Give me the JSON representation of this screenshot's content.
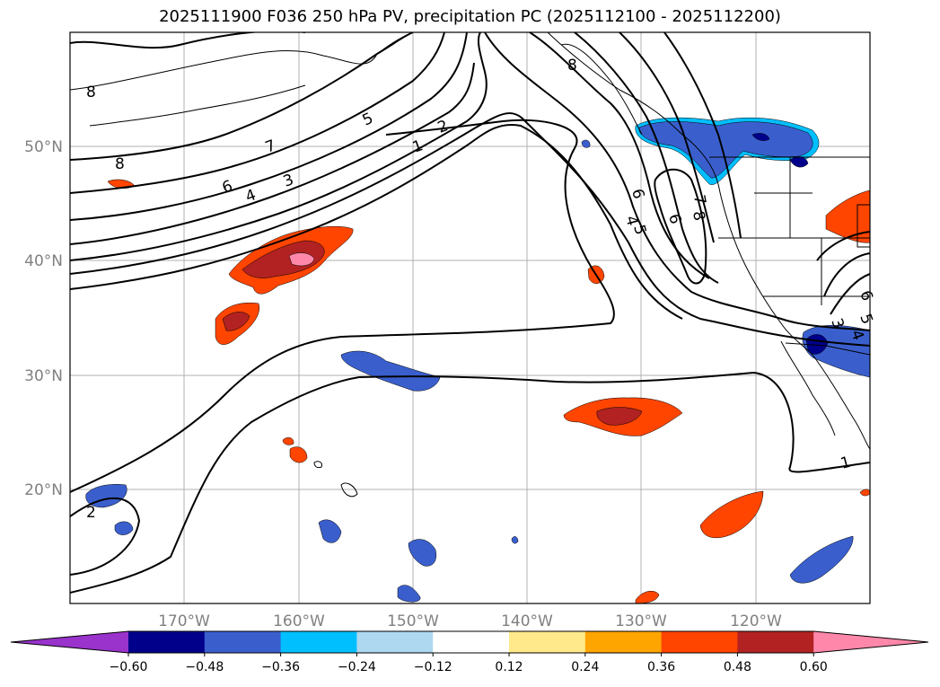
{
  "title": "2025111900 F036 250 hPa PV, precipitation PC (2025112100 - 2025112200)",
  "lat_labels": [
    "50°N",
    "40°N",
    "30°N",
    "20°N"
  ],
  "lon_labels": [
    "170°W",
    "160°W",
    "150°W",
    "140°W",
    "130°W",
    "120°W"
  ],
  "colorbar": {
    "ticks": [
      "−0.60",
      "−0.48",
      "−0.36",
      "−0.24",
      "−0.12",
      "0.12",
      "0.24",
      "0.36",
      "0.48",
      "0.60"
    ],
    "colors": [
      "#9933cc",
      "#00008b",
      "#3a5fcd",
      "#00bfff",
      "#add8f0",
      "#ffffff",
      "#ffe98a",
      "#ffa500",
      "#ff4500",
      "#b22222",
      "#ff88aa"
    ]
  },
  "contour_labels": [
    {
      "text": "8"
    },
    {
      "text": "8"
    },
    {
      "text": "7"
    },
    {
      "text": "6"
    },
    {
      "text": "4"
    },
    {
      "text": "3"
    },
    {
      "text": "5"
    },
    {
      "text": "2"
    },
    {
      "text": "1"
    },
    {
      "text": "6"
    },
    {
      "text": "4"
    },
    {
      "text": "5"
    },
    {
      "text": "6"
    },
    {
      "text": "7"
    },
    {
      "text": "8"
    },
    {
      "text": "8"
    },
    {
      "text": "3"
    },
    {
      "text": "5"
    },
    {
      "text": "4"
    },
    {
      "text": "6"
    },
    {
      "text": "1"
    },
    {
      "text": "2"
    }
  ],
  "colors": {
    "map_frame": "#000000",
    "grid": "#b0b0b0",
    "axis_text": "#808080"
  }
}
